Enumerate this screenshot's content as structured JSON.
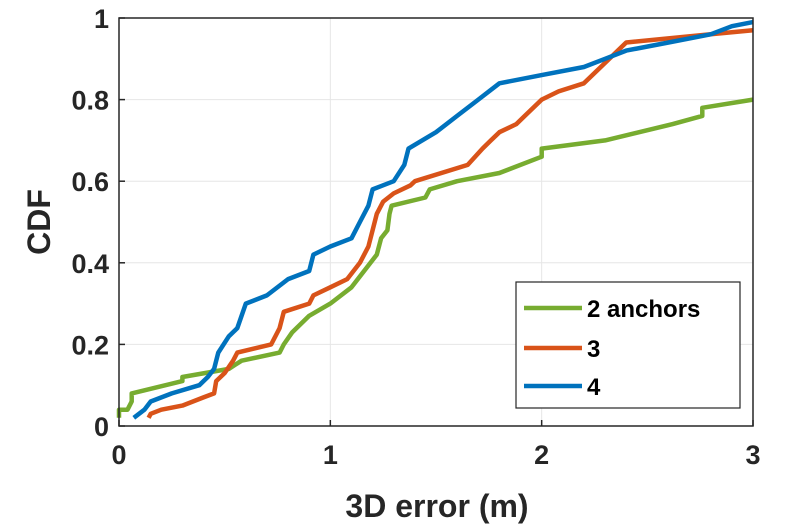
{
  "chart_data": {
    "type": "line",
    "xlabel": "3D error (m)",
    "ylabel": "CDF",
    "xlim": [
      0,
      3
    ],
    "ylim": [
      0,
      1
    ],
    "xticks": [
      "0",
      "1",
      "2",
      "3"
    ],
    "yticks": [
      "0",
      "0.2",
      "0.4",
      "0.6",
      "0.8",
      "1"
    ],
    "grid": true,
    "legend_position": "bottom-right",
    "series": [
      {
        "name": "2 anchors",
        "color": "#77AC30",
        "x": [
          0.0,
          0.0,
          0.04,
          0.06,
          0.06,
          0.3,
          0.3,
          0.52,
          0.55,
          0.58,
          0.76,
          0.78,
          0.82,
          0.9,
          1.0,
          1.1,
          1.16,
          1.22,
          1.24,
          1.27,
          1.28,
          1.29,
          1.45,
          1.47,
          1.6,
          1.8,
          2.0,
          2.0,
          2.3,
          2.62,
          2.76,
          2.76,
          3.0
        ],
        "y": [
          0.02,
          0.04,
          0.04,
          0.06,
          0.08,
          0.11,
          0.12,
          0.14,
          0.15,
          0.16,
          0.18,
          0.2,
          0.23,
          0.27,
          0.3,
          0.34,
          0.38,
          0.42,
          0.46,
          0.48,
          0.52,
          0.54,
          0.56,
          0.58,
          0.6,
          0.62,
          0.66,
          0.68,
          0.7,
          0.74,
          0.76,
          0.78,
          0.8
        ]
      },
      {
        "name": "3",
        "color": "#D95319",
        "x": [
          0.14,
          0.15,
          0.2,
          0.3,
          0.4,
          0.45,
          0.46,
          0.5,
          0.54,
          0.56,
          0.72,
          0.76,
          0.78,
          0.9,
          0.92,
          1.0,
          1.08,
          1.14,
          1.18,
          1.2,
          1.22,
          1.25,
          1.3,
          1.38,
          1.4,
          1.65,
          1.72,
          1.76,
          1.8,
          1.88,
          1.92,
          2.0,
          2.08,
          2.2,
          2.28,
          2.4,
          2.8,
          3.0
        ],
        "y": [
          0.02,
          0.03,
          0.04,
          0.05,
          0.07,
          0.08,
          0.11,
          0.13,
          0.16,
          0.18,
          0.2,
          0.24,
          0.28,
          0.3,
          0.32,
          0.34,
          0.36,
          0.4,
          0.44,
          0.48,
          0.52,
          0.55,
          0.57,
          0.59,
          0.6,
          0.64,
          0.68,
          0.7,
          0.72,
          0.74,
          0.76,
          0.8,
          0.82,
          0.84,
          0.88,
          0.94,
          0.96,
          0.97
        ]
      },
      {
        "name": "4",
        "color": "#0072BD",
        "x": [
          0.07,
          0.12,
          0.15,
          0.25,
          0.38,
          0.42,
          0.45,
          0.46,
          0.47,
          0.52,
          0.56,
          0.6,
          0.7,
          0.8,
          0.9,
          0.92,
          1.0,
          1.1,
          1.14,
          1.18,
          1.2,
          1.3,
          1.35,
          1.37,
          1.5,
          1.6,
          1.7,
          1.8,
          2.0,
          2.2,
          2.3,
          2.4,
          2.6,
          2.8,
          2.9,
          3.0
        ],
        "y": [
          0.02,
          0.04,
          0.06,
          0.08,
          0.1,
          0.12,
          0.14,
          0.16,
          0.18,
          0.22,
          0.24,
          0.3,
          0.32,
          0.36,
          0.38,
          0.42,
          0.44,
          0.46,
          0.5,
          0.54,
          0.58,
          0.6,
          0.64,
          0.68,
          0.72,
          0.76,
          0.8,
          0.84,
          0.86,
          0.88,
          0.9,
          0.92,
          0.94,
          0.96,
          0.98,
          0.99
        ]
      }
    ]
  }
}
